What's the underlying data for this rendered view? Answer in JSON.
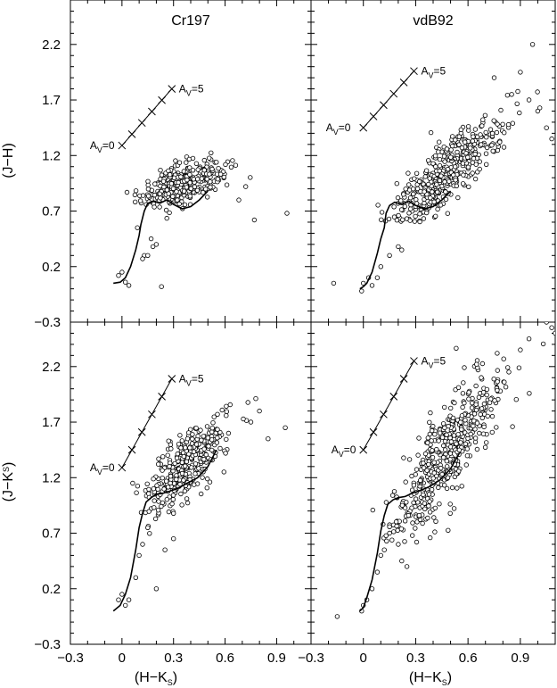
{
  "figure": {
    "x_axis_label": "(H−K",
    "x_axis_label_sub": "S",
    "x_axis_label_close": ")",
    "top_y_axis_label": "(J−H)",
    "bottom_y_axis_label": "(J−K",
    "bottom_y_axis_label_sub": "S",
    "bottom_y_axis_label_close": ")",
    "x_tick_labels": [
      "−0.3",
      "0",
      "0.3",
      "0.6",
      "0.9"
    ],
    "x_tick_labels_right_first": "−0.3",
    "top_y_tick_labels": [
      "2.2",
      "1.7",
      "1.2",
      "0.7",
      "0.2",
      "−0.3"
    ],
    "bottom_y_tick_labels": [
      "2.2",
      "1.7",
      "1.2",
      "0.7",
      "0.2",
      "−0.3"
    ],
    "av_prefix": "A",
    "av_sub": "V",
    "av0_label": "=0",
    "av5_label": "=5"
  },
  "chart_data": [
    {
      "type": "scatter",
      "panel": "top-left",
      "title": "Cr197",
      "xlabel": "",
      "ylabel": "(J−H)",
      "xlim": [
        -0.3,
        1.1
      ],
      "ylim": [
        -0.3,
        2.6
      ],
      "reddening_vector": {
        "x": [
          0.0,
          0.29
        ],
        "y": [
          1.29,
          1.8
        ],
        "cross_marks": 6
      },
      "intrinsic_sequence": {
        "x": [
          -0.05,
          -0.01,
          0.02,
          0.05,
          0.08,
          0.1,
          0.11,
          0.13,
          0.15,
          0.18,
          0.22,
          0.26,
          0.3,
          0.35,
          0.4,
          0.45,
          0.5
        ],
        "y": [
          0.05,
          0.06,
          0.1,
          0.2,
          0.35,
          0.48,
          0.58,
          0.7,
          0.77,
          0.79,
          0.77,
          0.8,
          0.76,
          0.72,
          0.74,
          0.8,
          0.88
        ]
      },
      "cluster": {
        "n": 340,
        "cx": 0.36,
        "cy": 0.94,
        "sx": 0.12,
        "sy": 0.13
      },
      "outliers": {
        "x": [
          -0.02,
          0.0,
          0.02,
          0.04,
          0.13,
          0.12,
          0.15,
          0.18,
          0.23,
          0.09,
          0.17,
          0.2,
          0.68,
          0.77,
          0.96,
          0.72
        ],
        "y": [
          0.12,
          0.15,
          0.06,
          0.03,
          0.3,
          0.27,
          0.3,
          0.38,
          0.02,
          0.55,
          0.45,
          0.4,
          0.8,
          0.62,
          0.68,
          0.92
        ]
      }
    },
    {
      "type": "scatter",
      "panel": "top-right",
      "title": "vdB92",
      "xlabel": "",
      "ylabel": "",
      "xlim": [
        -0.3,
        1.1
      ],
      "ylim": [
        -0.3,
        2.6
      ],
      "reddening_vector": {
        "x": [
          0.0,
          0.29
        ],
        "y": [
          1.45,
          1.96
        ],
        "cross_marks": 6
      },
      "intrinsic_sequence": {
        "x": [
          -0.02,
          0.0,
          0.02,
          0.05,
          0.08,
          0.1,
          0.12,
          0.13,
          0.15,
          0.18,
          0.22,
          0.26,
          0.3,
          0.35,
          0.4,
          0.45,
          0.5
        ],
        "y": [
          0.0,
          0.02,
          0.05,
          0.15,
          0.32,
          0.45,
          0.55,
          0.68,
          0.75,
          0.78,
          0.76,
          0.79,
          0.75,
          0.72,
          0.74,
          0.8,
          0.88
        ]
      },
      "cluster": {
        "n": 460,
        "cx": 0.45,
        "cy": 1.0,
        "sx": 0.17,
        "sy": 0.26
      },
      "outliers": {
        "x": [
          -0.17,
          -0.01,
          0.0,
          0.03,
          0.05,
          0.08,
          0.1,
          0.15,
          0.2,
          0.22,
          0.9,
          0.97,
          1.0,
          1.05,
          1.08,
          0.95,
          0.75,
          0.85
        ],
        "y": [
          0.05,
          -0.02,
          0.05,
          0.1,
          0.03,
          0.1,
          0.2,
          0.3,
          0.38,
          0.35,
          1.95,
          2.2,
          1.6,
          1.45,
          1.35,
          1.7,
          1.9,
          1.75
        ]
      }
    },
    {
      "type": "scatter",
      "panel": "bottom-left",
      "title": "",
      "xlabel": "(H−K_S)",
      "ylabel": "(J−K_S)",
      "xlim": [
        -0.3,
        1.1
      ],
      "ylim": [
        -0.3,
        2.6
      ],
      "reddening_vector": {
        "x": [
          0.0,
          0.29
        ],
        "y": [
          1.29,
          2.09
        ],
        "cross_marks": 6
      },
      "intrinsic_sequence": {
        "x": [
          -0.05,
          -0.01,
          0.02,
          0.05,
          0.08,
          0.1,
          0.12,
          0.14,
          0.17,
          0.2,
          0.24,
          0.28,
          0.32,
          0.38,
          0.44,
          0.5,
          0.55
        ],
        "y": [
          0.0,
          0.05,
          0.15,
          0.3,
          0.55,
          0.75,
          0.88,
          0.98,
          1.02,
          1.05,
          1.06,
          1.08,
          1.1,
          1.15,
          1.2,
          1.3,
          1.45
        ]
      },
      "cluster": {
        "n": 340,
        "cx": 0.37,
        "cy": 1.3,
        "sx": 0.12,
        "sy": 0.2
      },
      "outliers": {
        "x": [
          -0.02,
          0.0,
          0.02,
          0.04,
          0.08,
          0.1,
          0.12,
          0.15,
          0.2,
          0.25,
          0.3,
          0.62,
          0.8,
          0.95,
          0.85,
          0.75
        ],
        "y": [
          0.1,
          0.15,
          0.05,
          0.1,
          0.3,
          0.5,
          0.6,
          0.75,
          0.2,
          0.55,
          0.65,
          1.6,
          1.8,
          1.65,
          1.55,
          1.7
        ]
      }
    },
    {
      "type": "scatter",
      "panel": "bottom-right",
      "title": "",
      "xlabel": "(H−K_S)",
      "ylabel": "",
      "xlim": [
        -0.3,
        1.1
      ],
      "ylim": [
        -0.3,
        2.6
      ],
      "reddening_vector": {
        "x": [
          0.0,
          0.29
        ],
        "y": [
          1.45,
          2.25
        ],
        "cross_marks": 6
      },
      "intrinsic_sequence": {
        "x": [
          -0.02,
          0.0,
          0.02,
          0.05,
          0.08,
          0.1,
          0.12,
          0.14,
          0.17,
          0.2,
          0.24,
          0.28,
          0.32,
          0.38,
          0.44,
          0.5,
          0.55
        ],
        "y": [
          0.0,
          0.03,
          0.12,
          0.28,
          0.52,
          0.72,
          0.86,
          0.96,
          1.0,
          1.02,
          1.03,
          1.06,
          1.08,
          1.12,
          1.18,
          1.28,
          1.42
        ]
      },
      "cluster": {
        "n": 470,
        "cx": 0.47,
        "cy": 1.4,
        "sx": 0.17,
        "sy": 0.42
      },
      "outliers": {
        "x": [
          -0.15,
          -0.01,
          0.0,
          0.02,
          0.05,
          0.08,
          0.1,
          0.12,
          0.15,
          0.2,
          0.22,
          0.25,
          1.05,
          1.08,
          1.1,
          1.0,
          0.95,
          0.9
        ],
        "y": [
          -0.05,
          0.0,
          0.05,
          0.1,
          0.2,
          0.35,
          0.5,
          0.55,
          0.7,
          0.6,
          0.45,
          0.4,
          2.6,
          2.55,
          2.5,
          2.65,
          2.45,
          2.35
        ]
      }
    }
  ]
}
